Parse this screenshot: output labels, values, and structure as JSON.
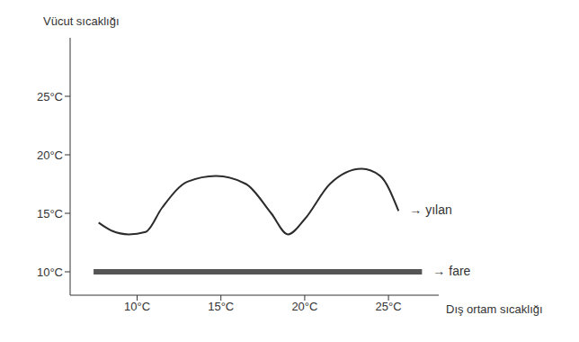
{
  "chart_data": {
    "type": "line",
    "y_label": "Vücut sıcaklığı",
    "x_label": "Dış ortam sıcaklığı",
    "xlim": [
      6,
      28
    ],
    "ylim": [
      8,
      30
    ],
    "xticks": [
      {
        "value": 10,
        "label": "10°C"
      },
      {
        "value": 15,
        "label": "15°C"
      },
      {
        "value": 20,
        "label": "20°C"
      },
      {
        "value": 25,
        "label": "25°C"
      }
    ],
    "yticks": [
      {
        "value": 10,
        "label": "10°C"
      },
      {
        "value": 15,
        "label": "15°C"
      },
      {
        "value": 20,
        "label": "20°C"
      },
      {
        "value": 25,
        "label": "25°C"
      }
    ],
    "grid": false,
    "series": [
      {
        "name": "yılan",
        "color": "#2b2b2b",
        "x": [
          7.7,
          8.5,
          9.5,
          10.5,
          11.5,
          13,
          14.7,
          16.5,
          18,
          19,
          20,
          21.5,
          23.4,
          24.5,
          25.6
        ],
        "values": [
          14.2,
          13.5,
          13.2,
          13.4,
          15.5,
          17.7,
          18.2,
          17.5,
          15,
          13.2,
          14.5,
          17.5,
          18.8,
          18.2,
          15.2
        ]
      },
      {
        "name": "fare",
        "color": "#555555",
        "x": [
          7.4,
          27
        ],
        "values": [
          10,
          10
        ]
      }
    ]
  }
}
